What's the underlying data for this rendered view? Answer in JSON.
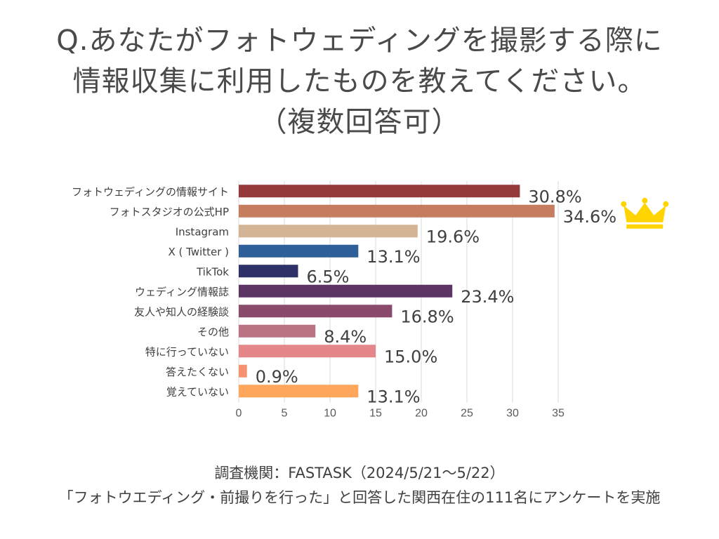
{
  "title": {
    "line1": "Q.あなたがフォトウェディングを撮影する際に",
    "line2": "情報収集に利用したものを教えてください。",
    "line3": "（複数回答可）"
  },
  "chart_data": {
    "type": "bar",
    "orientation": "horizontal",
    "categories": [
      "フォトウェディングの情報サイト",
      "フォトスタジオの公式HP",
      "Instagram",
      "X ( Twitter )",
      "TikTok",
      "ウェディング情報誌",
      "友人や知人の経験談",
      "その他",
      "特に行っていない",
      "答えたくない",
      "覚えていない"
    ],
    "values": [
      30.8,
      34.6,
      19.6,
      13.1,
      6.5,
      23.4,
      16.8,
      8.4,
      15.0,
      0.9,
      13.1
    ],
    "value_labels": [
      "30.8%",
      "34.6%",
      "19.6%",
      "13.1%",
      "6.5%",
      "23.4%",
      "16.8%",
      "8.4%",
      "15.0%",
      "0.9%",
      "13.1%"
    ],
    "colors": [
      "#943a3a",
      "#c67c5e",
      "#d3b595",
      "#2f5f98",
      "#2e3167",
      "#5d3565",
      "#8a4a6c",
      "#b87282",
      "#e4868a",
      "#f59271",
      "#fda65c"
    ],
    "xlim": [
      0,
      35
    ],
    "xticks": [
      0,
      5,
      10,
      15,
      20,
      25,
      30,
      35
    ],
    "grid": true,
    "highlight_icon": "crown-icon",
    "highlight_color": "#ffd400"
  },
  "footer": {
    "line1": "調査機関：FASTASK（2024/5/21〜5/22）",
    "line2": "「フォトウエディング・前撮りを行った」と回答した関西在住の111名にアンケートを実施"
  }
}
